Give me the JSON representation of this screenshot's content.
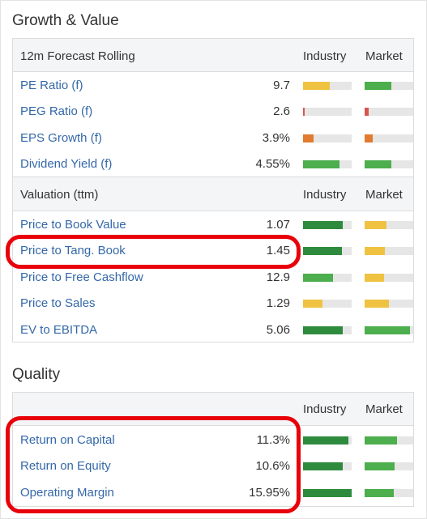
{
  "sections": {
    "growth_value": {
      "title": "Growth & Value",
      "forecast": {
        "header": {
          "label": "12m Forecast Rolling",
          "industry": "Industry",
          "market": "Market"
        },
        "rows": [
          {
            "label": "PE Ratio (f)",
            "value": "9.7",
            "industry": {
              "pct": 0.55,
              "color": "#f0c242"
            },
            "market": {
              "pct": 0.55,
              "color": "#4cae4c"
            }
          },
          {
            "label": "PEG Ratio (f)",
            "value": "2.6",
            "industry": {
              "pct": 0.04,
              "color": "#d9534f"
            },
            "market": {
              "pct": 0.09,
              "color": "#d9534f"
            }
          },
          {
            "label": "EPS Growth (f)",
            "value": "3.9%",
            "industry": {
              "pct": 0.22,
              "color": "#e07b2f"
            },
            "market": {
              "pct": 0.17,
              "color": "#e07b2f"
            }
          },
          {
            "label": "Dividend Yield (f)",
            "value": "4.55%",
            "industry": {
              "pct": 0.75,
              "color": "#4cae4c"
            },
            "market": {
              "pct": 0.55,
              "color": "#4cae4c"
            }
          }
        ]
      },
      "valuation": {
        "header": {
          "label": "Valuation (ttm)",
          "industry": "Industry",
          "market": "Market"
        },
        "rows": [
          {
            "label": "Price to Book Value",
            "value": "1.07",
            "industry": {
              "pct": 0.82,
              "color": "#2e8b3e"
            },
            "market": {
              "pct": 0.45,
              "color": "#f0c242"
            }
          },
          {
            "label": "Price to Tang. Book",
            "value": "1.45",
            "industry": {
              "pct": 0.8,
              "color": "#2e8b3e"
            },
            "market": {
              "pct": 0.42,
              "color": "#f0c242"
            }
          },
          {
            "label": "Price to Free Cashflow",
            "value": "12.9",
            "industry": {
              "pct": 0.62,
              "color": "#4cae4c"
            },
            "market": {
              "pct": 0.4,
              "color": "#f0c242"
            }
          },
          {
            "label": "Price to Sales",
            "value": "1.29",
            "industry": {
              "pct": 0.4,
              "color": "#f0c242"
            },
            "market": {
              "pct": 0.5,
              "color": "#f0c242"
            }
          },
          {
            "label": "EV to EBITDA",
            "value": "5.06",
            "industry": {
              "pct": 0.82,
              "color": "#2e8b3e"
            },
            "market": {
              "pct": 0.93,
              "color": "#4cae4c"
            }
          }
        ]
      }
    },
    "quality": {
      "title": "Quality",
      "header": {
        "label": "",
        "industry": "Industry",
        "market": "Market"
      },
      "rows": [
        {
          "label": "Return on Capital",
          "value": "11.3%",
          "industry": {
            "pct": 0.93,
            "color": "#2e8b3e"
          },
          "market": {
            "pct": 0.67,
            "color": "#4cae4c"
          }
        },
        {
          "label": "Return on Equity",
          "value": "10.6%",
          "industry": {
            "pct": 0.82,
            "color": "#2e8b3e"
          },
          "market": {
            "pct": 0.62,
            "color": "#4cae4c"
          }
        },
        {
          "label": "Operating Margin",
          "value": "15.95%",
          "industry": {
            "pct": 1.0,
            "color": "#2e8b3e"
          },
          "market": {
            "pct": 0.6,
            "color": "#4cae4c"
          }
        }
      ]
    }
  },
  "highlight_color": "#e8000b"
}
